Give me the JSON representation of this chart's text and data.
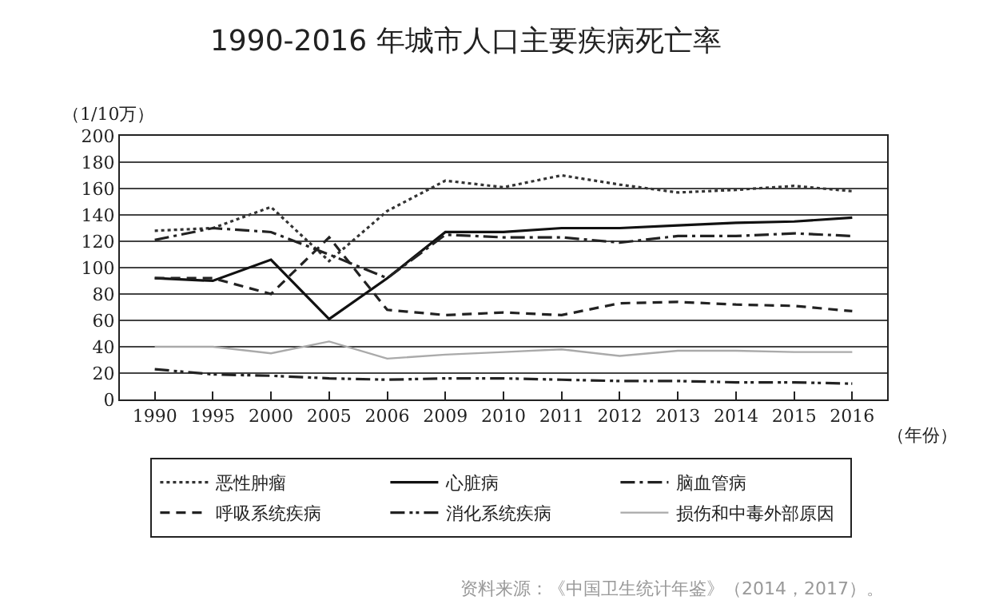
{
  "chart_data": {
    "type": "line",
    "title": "1990-2016 年城市人口主要疾病死亡率",
    "ylabel": "（1/10万）",
    "xlabel": "（年份）",
    "categories": [
      "1990",
      "1995",
      "2000",
      "2005",
      "2006",
      "2009",
      "2010",
      "2011",
      "2012",
      "2013",
      "2014",
      "2015",
      "2016"
    ],
    "series": [
      {
        "name": "恶性肿瘤",
        "color": "#333333",
        "line_style": "dotted",
        "values": [
          128,
          130,
          146,
          105,
          143,
          166,
          161,
          170,
          163,
          157,
          159,
          162,
          158
        ]
      },
      {
        "name": "心脏病",
        "color": "#111111",
        "line_style": "solid",
        "values": [
          92,
          90,
          106,
          61,
          92,
          127,
          127,
          130,
          130,
          132,
          134,
          135,
          138
        ]
      },
      {
        "name": "脑血管病",
        "color": "#222222",
        "line_style": "dashdot",
        "values": [
          121,
          130,
          127,
          110,
          92,
          125,
          123,
          123,
          119,
          124,
          124,
          126,
          124
        ]
      },
      {
        "name": "呼吸系统疾病",
        "color": "#222222",
        "line_style": "dashed",
        "values": [
          92,
          92,
          80,
          123,
          68,
          64,
          66,
          64,
          73,
          74,
          72,
          71,
          67
        ]
      },
      {
        "name": "消化系统疾病",
        "color": "#222222",
        "line_style": "dashdotdot",
        "values": [
          23,
          19,
          18,
          16,
          15,
          16,
          16,
          15,
          14,
          14,
          13,
          13,
          12
        ]
      },
      {
        "name": "损伤和中毒外部原因",
        "color": "#aaaaaa",
        "line_style": "solid",
        "values": [
          40,
          40,
          35,
          44,
          31,
          34,
          36,
          38,
          33,
          37,
          37,
          36,
          36
        ]
      }
    ],
    "ylim": [
      0,
      200
    ],
    "yticks": [
      0,
      20,
      40,
      60,
      80,
      100,
      120,
      140,
      160,
      180,
      200
    ],
    "grid": "y",
    "legend": "bottom",
    "marker": "none",
    "annotations": [
      "资料来源：《中国卫生统计年鉴》（2014，2017）。"
    ]
  }
}
